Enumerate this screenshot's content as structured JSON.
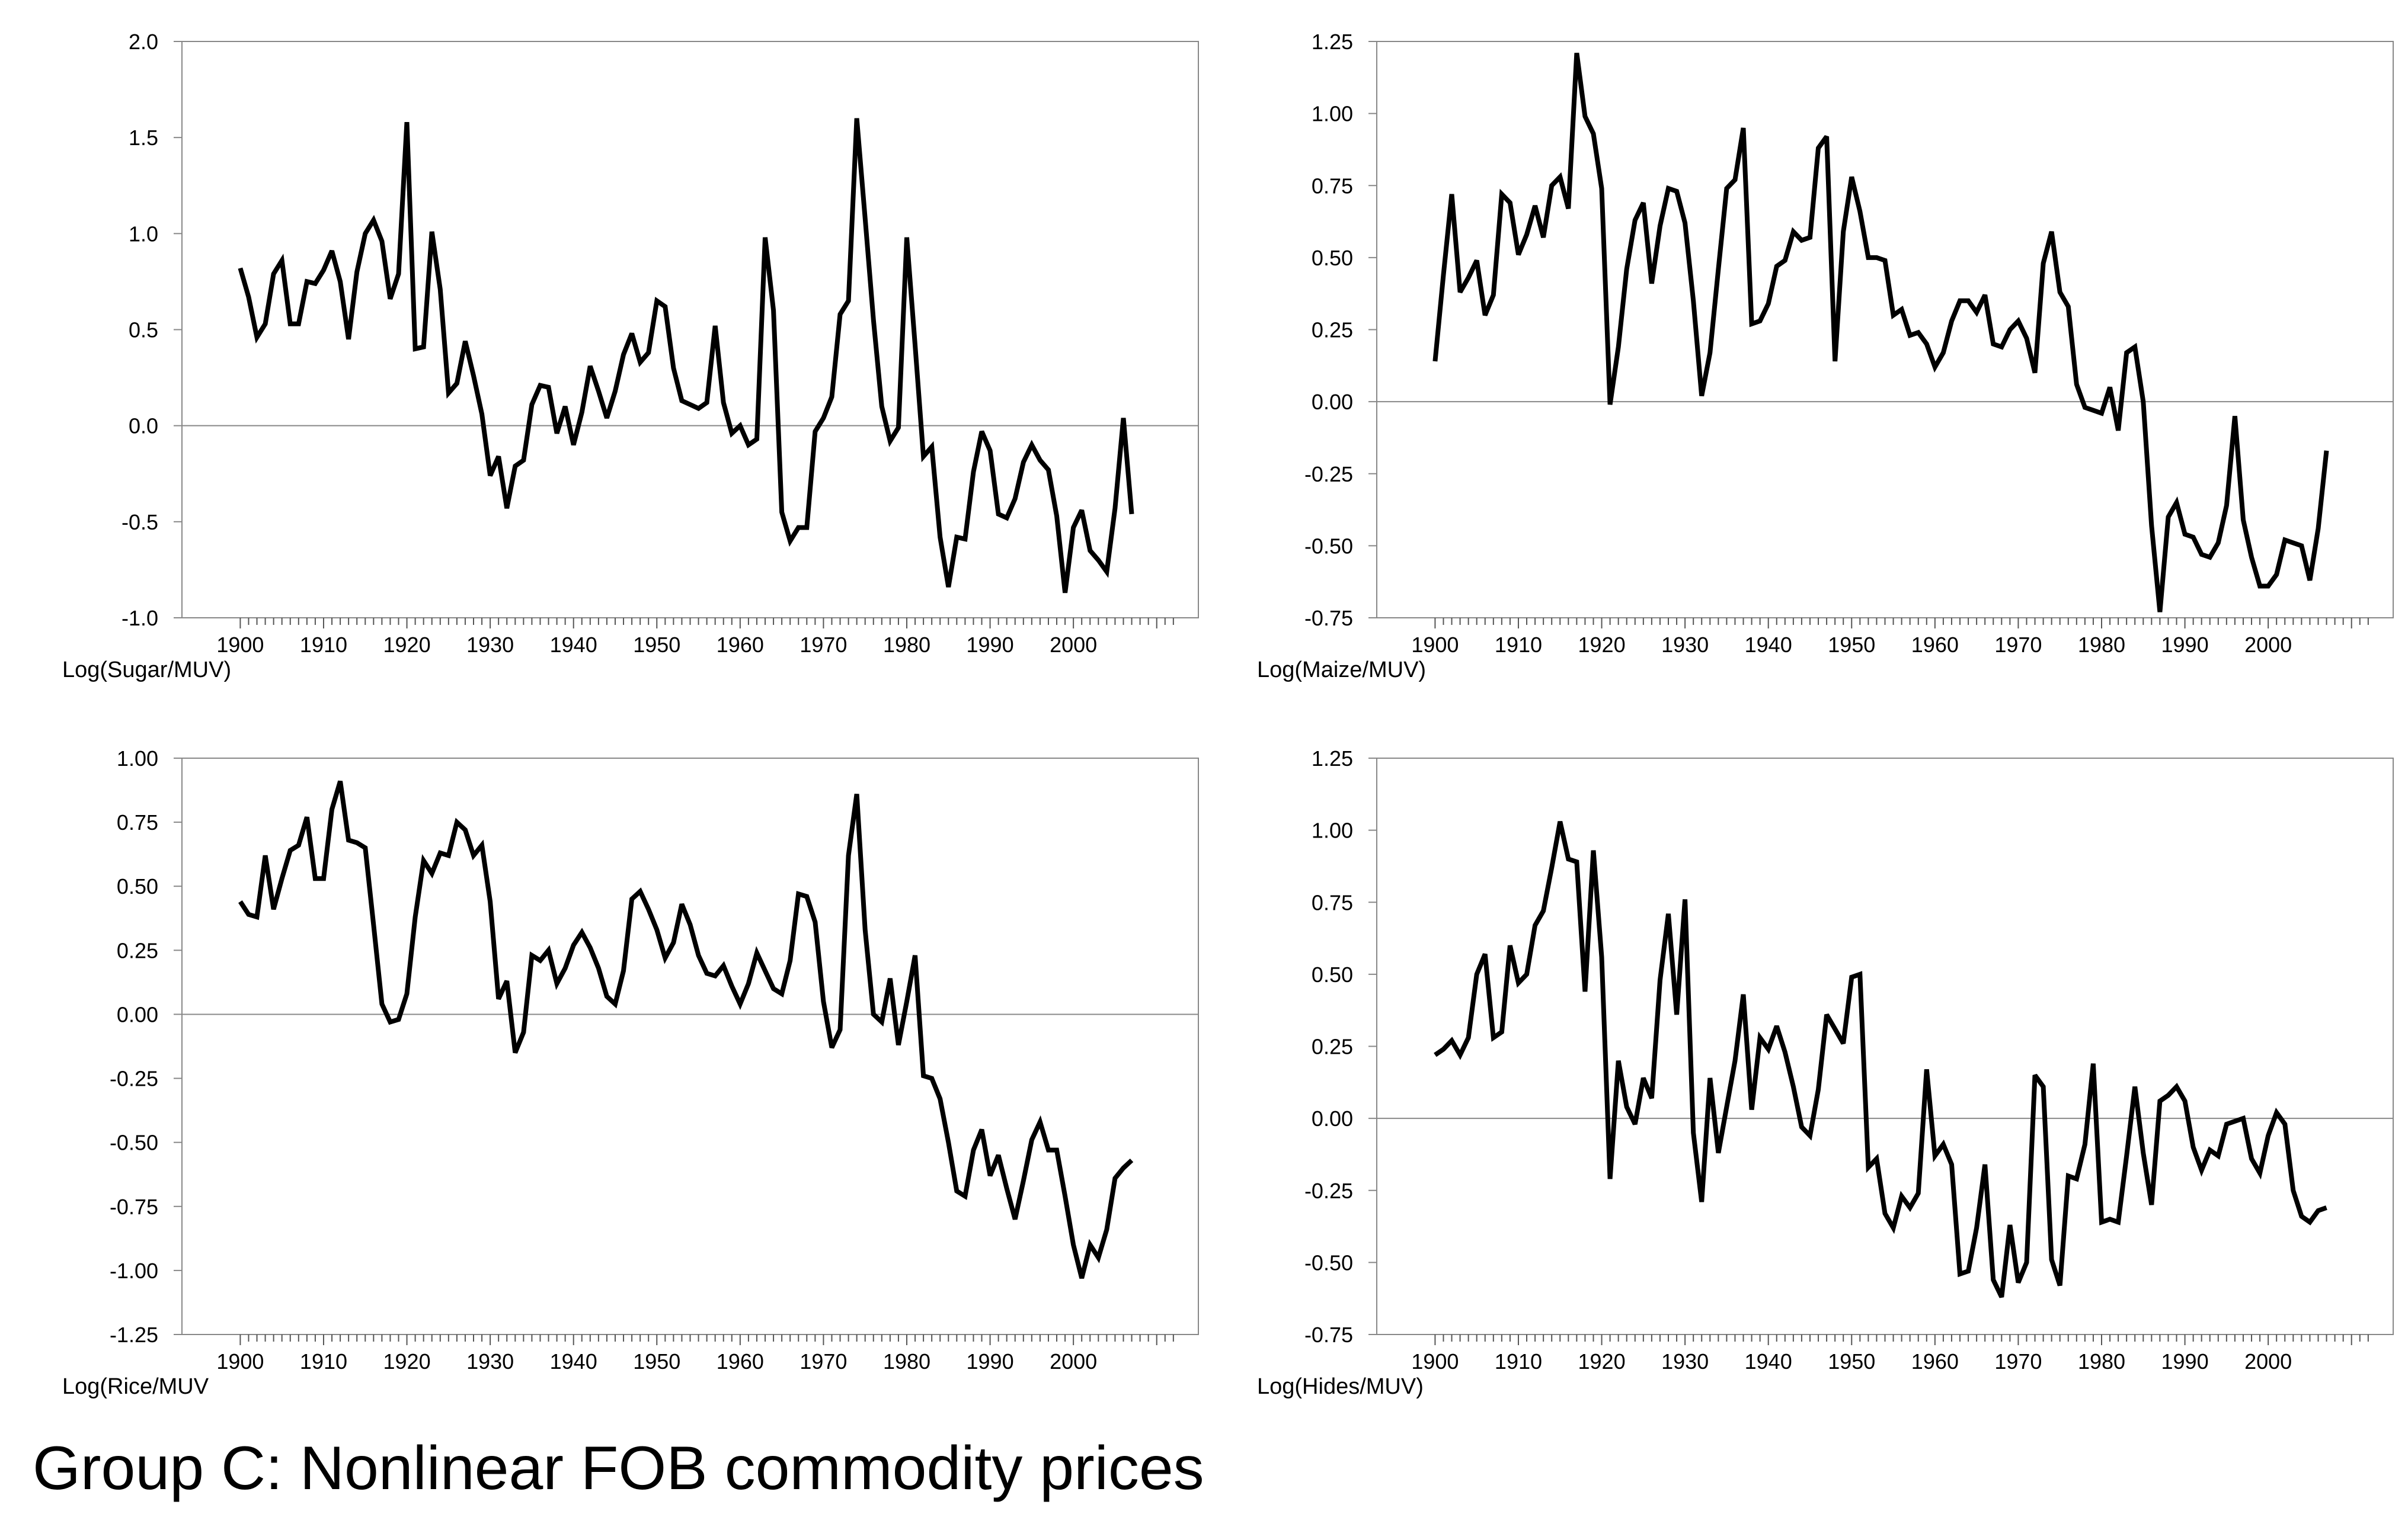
{
  "figure_title": "Group C: Nonlinear FOB commodity prices",
  "colors": {
    "series": "#000000",
    "zero_line": "#888888",
    "frame": "#888888",
    "background": "#ffffff"
  },
  "chart_data": [
    {
      "type": "line",
      "id": "sugar",
      "ylabel": "Log(Sugar/MUV)",
      "ylim": [
        -1.0,
        2.0
      ],
      "yticks": [
        -1.0,
        -0.5,
        0.0,
        0.5,
        1.0,
        1.5,
        2.0
      ],
      "ytick_labels": [
        "-1.0",
        "-0.5",
        "0.0",
        "0.5",
        "1.0",
        "1.5",
        "2.0"
      ],
      "xlim": [
        1893,
        2015
      ],
      "xticks": [
        1900,
        1910,
        1920,
        1930,
        1940,
        1950,
        1960,
        1970,
        1980,
        1990,
        2000
      ],
      "xtick_labels": [
        "1900",
        "1910",
        "1920",
        "1930",
        "1940",
        "1950",
        "1960",
        "1970",
        "1980",
        "1990",
        "2000"
      ],
      "zero_line": true,
      "x_start": 1900,
      "values": [
        0.82,
        0.67,
        0.46,
        0.53,
        0.79,
        0.86,
        0.53,
        0.53,
        0.75,
        0.74,
        0.81,
        0.91,
        0.75,
        0.45,
        0.8,
        1.0,
        1.07,
        0.96,
        0.66,
        0.79,
        1.58,
        0.4,
        0.41,
        1.01,
        0.71,
        0.17,
        0.22,
        0.44,
        0.26,
        0.06,
        -0.26,
        -0.16,
        -0.43,
        -0.21,
        -0.18,
        0.11,
        0.21,
        0.2,
        -0.04,
        0.1,
        -0.1,
        0.07,
        0.31,
        0.18,
        0.04,
        0.18,
        0.37,
        0.48,
        0.33,
        0.38,
        0.65,
        0.62,
        0.3,
        0.13,
        0.11,
        0.09,
        0.12,
        0.52,
        0.12,
        -0.04,
        0.0,
        -0.1,
        -0.07,
        0.98,
        0.6,
        -0.45,
        -0.6,
        -0.53,
        -0.53,
        -0.03,
        0.04,
        0.15,
        0.58,
        0.65,
        1.6,
        1.08,
        0.55,
        0.1,
        -0.08,
        -0.01,
        0.98,
        0.42,
        -0.16,
        -0.11,
        -0.58,
        -0.84,
        -0.58,
        -0.59,
        -0.24,
        -0.03,
        -0.13,
        -0.46,
        -0.48,
        -0.38,
        -0.19,
        -0.1,
        -0.18,
        -0.23,
        -0.47,
        -0.87,
        -0.53,
        -0.44,
        -0.65,
        -0.7,
        -0.76,
        -0.43,
        0.04,
        -0.46
      ]
    },
    {
      "type": "line",
      "id": "maize",
      "ylabel": "Log(Maize/MUV)",
      "ylim": [
        -0.75,
        1.25
      ],
      "yticks": [
        -0.75,
        -0.5,
        -0.25,
        0.0,
        0.25,
        0.5,
        0.75,
        1.0,
        1.25
      ],
      "ytick_labels": [
        "-0.75",
        "-0.50",
        "-0.25",
        "0.00",
        "0.25",
        "0.50",
        "0.75",
        "1.00",
        "1.25"
      ],
      "xlim": [
        1893,
        2015
      ],
      "xticks": [
        1900,
        1910,
        1920,
        1930,
        1940,
        1950,
        1960,
        1970,
        1980,
        1990,
        2000
      ],
      "xtick_labels": [
        "1900",
        "1910",
        "1920",
        "1930",
        "1940",
        "1950",
        "1960",
        "1970",
        "1980",
        "1990",
        "2000"
      ],
      "zero_line": true,
      "x_start": 1900,
      "values": [
        0.14,
        0.44,
        0.72,
        0.38,
        0.43,
        0.49,
        0.3,
        0.37,
        0.72,
        0.69,
        0.51,
        0.58,
        0.68,
        0.57,
        0.75,
        0.78,
        0.67,
        1.21,
        0.99,
        0.93,
        0.74,
        -0.01,
        0.19,
        0.46,
        0.63,
        0.69,
        0.41,
        0.61,
        0.74,
        0.73,
        0.62,
        0.35,
        0.02,
        0.17,
        0.46,
        0.74,
        0.77,
        0.95,
        0.27,
        0.28,
        0.34,
        0.47,
        0.49,
        0.59,
        0.56,
        0.57,
        0.88,
        0.92,
        0.14,
        0.59,
        0.78,
        0.66,
        0.5,
        0.5,
        0.49,
        0.3,
        0.32,
        0.23,
        0.24,
        0.2,
        0.12,
        0.17,
        0.28,
        0.35,
        0.35,
        0.31,
        0.37,
        0.2,
        0.19,
        0.25,
        0.28,
        0.22,
        0.1,
        0.48,
        0.59,
        0.38,
        0.33,
        0.06,
        -0.02,
        -0.03,
        -0.04,
        0.05,
        -0.1,
        0.17,
        0.19,
        0.0,
        -0.43,
        -0.73,
        -0.4,
        -0.35,
        -0.46,
        -0.47,
        -0.53,
        -0.54,
        -0.49,
        -0.36,
        -0.05,
        -0.41,
        -0.54,
        -0.64,
        -0.64,
        -0.6,
        -0.48,
        -0.49,
        -0.5,
        -0.62,
        -0.44,
        -0.17
      ]
    },
    {
      "type": "line",
      "id": "rice",
      "ylabel": "Log(Rice/MUV",
      "ylim": [
        -1.25,
        1.0
      ],
      "yticks": [
        -1.25,
        -1.0,
        -0.75,
        -0.5,
        -0.25,
        0.0,
        0.25,
        0.5,
        0.75,
        1.0
      ],
      "ytick_labels": [
        "-1.25",
        "-1.00",
        "-0.75",
        "-0.50",
        "-0.25",
        "0.00",
        "0.25",
        "0.50",
        "0.75",
        "1.00"
      ],
      "xlim": [
        1893,
        2015
      ],
      "xticks": [
        1900,
        1910,
        1920,
        1930,
        1940,
        1950,
        1960,
        1970,
        1980,
        1990,
        2000
      ],
      "xtick_labels": [
        "1900",
        "1910",
        "1920",
        "1930",
        "1940",
        "1950",
        "1960",
        "1970",
        "1980",
        "1990",
        "2000"
      ],
      "zero_line": true,
      "x_start": 1900,
      "values": [
        0.44,
        0.39,
        0.38,
        0.62,
        0.41,
        0.53,
        0.64,
        0.66,
        0.77,
        0.53,
        0.53,
        0.8,
        0.91,
        0.68,
        0.67,
        0.65,
        0.35,
        0.04,
        -0.03,
        -0.02,
        0.08,
        0.38,
        0.6,
        0.55,
        0.63,
        0.62,
        0.75,
        0.72,
        0.62,
        0.66,
        0.44,
        0.06,
        0.13,
        -0.15,
        -0.07,
        0.23,
        0.21,
        0.25,
        0.12,
        0.18,
        0.27,
        0.32,
        0.26,
        0.18,
        0.07,
        0.04,
        0.17,
        0.45,
        0.48,
        0.41,
        0.33,
        0.22,
        0.28,
        0.43,
        0.35,
        0.23,
        0.16,
        0.15,
        0.19,
        0.11,
        0.04,
        0.12,
        0.24,
        0.17,
        0.1,
        0.08,
        0.21,
        0.47,
        0.46,
        0.36,
        0.05,
        -0.13,
        -0.06,
        0.62,
        0.86,
        0.33,
        0.0,
        -0.03,
        0.14,
        -0.12,
        0.05,
        0.23,
        -0.24,
        -0.25,
        -0.33,
        -0.5,
        -0.69,
        -0.71,
        -0.53,
        -0.45,
        -0.63,
        -0.55,
        -0.68,
        -0.8,
        -0.65,
        -0.49,
        -0.42,
        -0.53,
        -0.53,
        -0.71,
        -0.9,
        -1.03,
        -0.9,
        -0.95,
        -0.84,
        -0.64,
        -0.6,
        -0.57
      ]
    },
    {
      "type": "line",
      "id": "hides",
      "ylabel": "Log(Hides/MUV)",
      "ylim": [
        -0.75,
        1.25
      ],
      "yticks": [
        -0.75,
        -0.5,
        -0.25,
        0.0,
        0.25,
        0.5,
        0.75,
        1.0,
        1.25
      ],
      "ytick_labels": [
        "-0.75",
        "-0.50",
        "-0.25",
        "0.00",
        "0.25",
        "0.50",
        "0.75",
        "1.00",
        "1.25"
      ],
      "xlim": [
        1893,
        2015
      ],
      "xticks": [
        1900,
        1910,
        1920,
        1930,
        1940,
        1950,
        1960,
        1970,
        1980,
        1990,
        2000
      ],
      "xtick_labels": [
        "1900",
        "1910",
        "1920",
        "1930",
        "1940",
        "1950",
        "1960",
        "1970",
        "1980",
        "1990",
        "2000"
      ],
      "zero_line": true,
      "x_start": 1900,
      "values": [
        0.22,
        0.24,
        0.27,
        0.22,
        0.28,
        0.5,
        0.57,
        0.28,
        0.3,
        0.6,
        0.47,
        0.5,
        0.67,
        0.72,
        0.87,
        1.03,
        0.9,
        0.89,
        0.44,
        0.93,
        0.56,
        -0.21,
        0.2,
        0.04,
        -0.02,
        0.14,
        0.07,
        0.48,
        0.71,
        0.36,
        0.76,
        -0.05,
        -0.29,
        0.14,
        -0.12,
        0.04,
        0.2,
        0.43,
        0.03,
        0.28,
        0.24,
        0.32,
        0.23,
        0.11,
        -0.03,
        -0.06,
        0.1,
        0.36,
        0.31,
        0.26,
        0.49,
        0.5,
        -0.17,
        -0.14,
        -0.33,
        -0.38,
        -0.27,
        -0.31,
        -0.26,
        0.17,
        -0.13,
        -0.09,
        -0.16,
        -0.54,
        -0.53,
        -0.38,
        -0.16,
        -0.56,
        -0.62,
        -0.37,
        -0.57,
        -0.5,
        0.15,
        0.11,
        -0.49,
        -0.58,
        -0.2,
        -0.21,
        -0.09,
        0.19,
        -0.36,
        -0.35,
        -0.36,
        -0.13,
        0.11,
        -0.12,
        -0.3,
        0.06,
        0.08,
        0.11,
        0.06,
        -0.1,
        -0.18,
        -0.11,
        -0.13,
        -0.02,
        -0.01,
        0.0,
        -0.14,
        -0.19,
        -0.06,
        0.02,
        -0.02,
        -0.25,
        -0.34,
        -0.36,
        -0.32,
        -0.31
      ]
    }
  ]
}
